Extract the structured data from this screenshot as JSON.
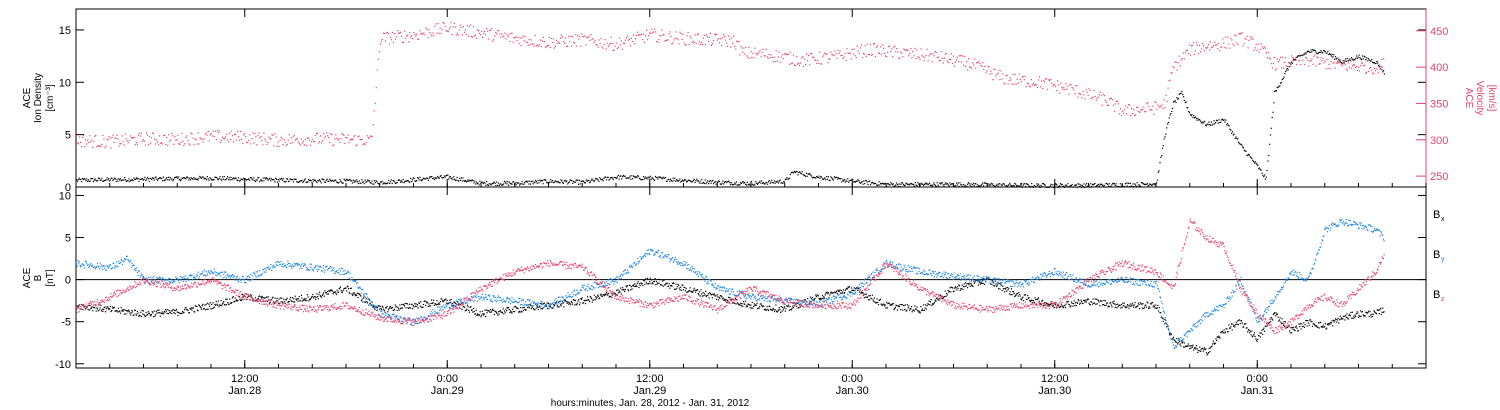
{
  "colors": {
    "black": "#000000",
    "pink": "#e8436f",
    "blue": "#1f86e0"
  },
  "chart_data": [
    {
      "type": "scatter",
      "title": "",
      "ylabel_lines": [
        "ACE",
        "Ion Density",
        "[cm⁻³]"
      ],
      "ylabel_right_lines": [
        "ACE",
        "Velocity",
        "[km/s]"
      ],
      "ylim": [
        0,
        17
      ],
      "yticks": [
        0,
        5,
        10,
        15
      ],
      "ylim_right": [
        235,
        480
      ],
      "yticks_right": [
        250,
        300,
        350,
        400,
        450
      ],
      "xlim_hours": [
        0,
        80
      ],
      "series": [
        {
          "name": "",
          "axis": "left",
          "color": "#000000",
          "values": [
            [
              0,
              0.7
            ],
            [
              4,
              0.8
            ],
            [
              8,
              0.9
            ],
            [
              12,
              0.7
            ],
            [
              16,
              0.6
            ],
            [
              18,
              0.5
            ],
            [
              19,
              0.6
            ],
            [
              21,
              0.9
            ],
            [
              22,
              1.0
            ],
            [
              24,
              0.4
            ],
            [
              26,
              0.4
            ],
            [
              28,
              0.6
            ],
            [
              30,
              0.5
            ],
            [
              32,
              1.0
            ],
            [
              34,
              0.9
            ],
            [
              36,
              0.7
            ],
            [
              38,
              0.5
            ],
            [
              40,
              0.4
            ],
            [
              42,
              0.6
            ],
            [
              42.5,
              1.5
            ],
            [
              44,
              1.0
            ],
            [
              46,
              0.6
            ],
            [
              48,
              0.3
            ],
            [
              52,
              0.3
            ],
            [
              56,
              0.2
            ],
            [
              60,
              0.2
            ],
            [
              63,
              0.3
            ],
            [
              64,
              0.4
            ],
            [
              64.5,
              5
            ],
            [
              65,
              8
            ],
            [
              65.5,
              9
            ],
            [
              66,
              7
            ],
            [
              67,
              6
            ],
            [
              68,
              6.5
            ],
            [
              69,
              4
            ],
            [
              70,
              2
            ],
            [
              70.5,
              0.8
            ],
            [
              71,
              9
            ],
            [
              72,
              12
            ],
            [
              73,
              13
            ],
            [
              74,
              13
            ],
            [
              75,
              12
            ],
            [
              76,
              12.5
            ],
            [
              77,
              12
            ],
            [
              77.5,
              11
            ]
          ]
        },
        {
          "name": "",
          "axis": "right",
          "color": "#e8436f",
          "values": [
            [
              0,
              300
            ],
            [
              2,
              298
            ],
            [
              4,
              302
            ],
            [
              6,
              301
            ],
            [
              8,
              305
            ],
            [
              10,
              304
            ],
            [
              12,
              300
            ],
            [
              14,
              302
            ],
            [
              16,
              301
            ],
            [
              17.5,
              300
            ],
            [
              18,
              440
            ],
            [
              20,
              445
            ],
            [
              22,
              455
            ],
            [
              24,
              448
            ],
            [
              26,
              440
            ],
            [
              28,
              435
            ],
            [
              30,
              438
            ],
            [
              32,
              432
            ],
            [
              34,
              445
            ],
            [
              36,
              440
            ],
            [
              38,
              438
            ],
            [
              39,
              436
            ],
            [
              39.5,
              420
            ],
            [
              41,
              418
            ],
            [
              43,
              410
            ],
            [
              45,
              415
            ],
            [
              47,
              425
            ],
            [
              49,
              420
            ],
            [
              51,
              415
            ],
            [
              53,
              405
            ],
            [
              55,
              385
            ],
            [
              57,
              380
            ],
            [
              59,
              370
            ],
            [
              61,
              355
            ],
            [
              62,
              340
            ],
            [
              64,
              345
            ],
            [
              64.5,
              350
            ],
            [
              65,
              400
            ],
            [
              66,
              425
            ],
            [
              67,
              430
            ],
            [
              68,
              433
            ],
            [
              69,
              440
            ],
            [
              70,
              430
            ],
            [
              71,
              405
            ],
            [
              73,
              410
            ],
            [
              75,
              403
            ],
            [
              77,
              400
            ],
            [
              77.5,
              405
            ]
          ]
        }
      ]
    },
    {
      "type": "scatter",
      "title": "",
      "ylabel_lines": [
        "ACE",
        "B",
        "[nT]"
      ],
      "ylim": [
        -10.5,
        11
      ],
      "yticks": [
        -10,
        -5,
        0,
        5,
        10
      ],
      "xlim_hours": [
        0,
        80
      ],
      "legend_placement": "right",
      "legend": [
        {
          "label": "B",
          "sub": "x",
          "color": "#000000"
        },
        {
          "label": "B",
          "sub": "y",
          "color": "#1f86e0"
        },
        {
          "label": "B",
          "sub": "z",
          "color": "#e8436f"
        }
      ],
      "series": [
        {
          "name": "Bₓ",
          "color": "#000000",
          "values": [
            [
              0,
              -3
            ],
            [
              2,
              -3.5
            ],
            [
              4,
              -4
            ],
            [
              6,
              -3.8
            ],
            [
              8,
              -3
            ],
            [
              10,
              -2
            ],
            [
              12,
              -2.5
            ],
            [
              14,
              -2
            ],
            [
              16,
              -1
            ],
            [
              18,
              -3.5
            ],
            [
              20,
              -3
            ],
            [
              22,
              -2.5
            ],
            [
              24,
              -4
            ],
            [
              26,
              -3.5
            ],
            [
              28,
              -3
            ],
            [
              30,
              -2.5
            ],
            [
              32,
              -1.5
            ],
            [
              34,
              0
            ],
            [
              36,
              -1
            ],
            [
              38,
              -2
            ],
            [
              40,
              -3
            ],
            [
              42,
              -3.5
            ],
            [
              44,
              -2
            ],
            [
              46,
              -1
            ],
            [
              48,
              -3
            ],
            [
              50,
              -3.5
            ],
            [
              52,
              -1
            ],
            [
              54,
              0
            ],
            [
              56,
              -2
            ],
            [
              58,
              -3
            ],
            [
              60,
              -2.5
            ],
            [
              62,
              -3
            ],
            [
              64,
              -3
            ],
            [
              65,
              -7
            ],
            [
              66,
              -8
            ],
            [
              67,
              -8.5
            ],
            [
              68,
              -6
            ],
            [
              69,
              -5
            ],
            [
              70,
              -7
            ],
            [
              71,
              -4
            ],
            [
              72,
              -6
            ],
            [
              73,
              -5
            ],
            [
              74,
              -5.5
            ],
            [
              75,
              -4.5
            ],
            [
              76,
              -4
            ],
            [
              77,
              -4
            ],
            [
              77.5,
              -3.5
            ]
          ]
        },
        {
          "name": "Bᵧ",
          "color": "#1f86e0",
          "values": [
            [
              0,
              2
            ],
            [
              2,
              1.5
            ],
            [
              3,
              2.5
            ],
            [
              4,
              0
            ],
            [
              6,
              0
            ],
            [
              8,
              1
            ],
            [
              10,
              0
            ],
            [
              12,
              2
            ],
            [
              14,
              1.5
            ],
            [
              16,
              1
            ],
            [
              18,
              -4
            ],
            [
              20,
              -5
            ],
            [
              22,
              -3
            ],
            [
              24,
              -2
            ],
            [
              26,
              -2.5
            ],
            [
              28,
              -3
            ],
            [
              30,
              -1
            ],
            [
              32,
              0
            ],
            [
              34,
              3.5
            ],
            [
              36,
              2
            ],
            [
              38,
              -1
            ],
            [
              40,
              -2
            ],
            [
              42,
              -2.5
            ],
            [
              44,
              -2.8
            ],
            [
              46,
              -1.5
            ],
            [
              48,
              2
            ],
            [
              50,
              1
            ],
            [
              52,
              0.5
            ],
            [
              54,
              0
            ],
            [
              56,
              -0.5
            ],
            [
              58,
              1
            ],
            [
              60,
              -0.5
            ],
            [
              62,
              0
            ],
            [
              64,
              -0.5
            ],
            [
              65,
              -8
            ],
            [
              66,
              -6
            ],
            [
              67,
              -4
            ],
            [
              68,
              -3
            ],
            [
              69,
              0
            ],
            [
              70,
              -5
            ],
            [
              71,
              -2
            ],
            [
              72,
              1
            ],
            [
              73,
              0
            ],
            [
              74,
              6
            ],
            [
              75,
              7
            ],
            [
              76,
              6.5
            ],
            [
              77,
              6
            ],
            [
              77.5,
              5
            ]
          ]
        },
        {
          "name": "Bᶻ",
          "color": "#e8436f",
          "values": [
            [
              0,
              -3.5
            ],
            [
              2,
              -2
            ],
            [
              4,
              0
            ],
            [
              6,
              -1
            ],
            [
              8,
              0
            ],
            [
              10,
              -2
            ],
            [
              12,
              -3
            ],
            [
              14,
              -3.5
            ],
            [
              16,
              -3
            ],
            [
              18,
              -4.5
            ],
            [
              20,
              -5
            ],
            [
              22,
              -4
            ],
            [
              24,
              -1
            ],
            [
              26,
              1
            ],
            [
              28,
              2
            ],
            [
              30,
              1.5
            ],
            [
              32,
              -2
            ],
            [
              34,
              -3
            ],
            [
              36,
              -2
            ],
            [
              38,
              -3.5
            ],
            [
              40,
              -1
            ],
            [
              42,
              -2.5
            ],
            [
              44,
              -3
            ],
            [
              46,
              -3
            ],
            [
              48,
              2
            ],
            [
              50,
              -1
            ],
            [
              52,
              -3
            ],
            [
              54,
              -3.5
            ],
            [
              56,
              -3
            ],
            [
              58,
              -3
            ],
            [
              60,
              0
            ],
            [
              62,
              2
            ],
            [
              64,
              1
            ],
            [
              65,
              -1
            ],
            [
              66,
              7
            ],
            [
              67,
              5
            ],
            [
              68,
              4
            ],
            [
              69,
              -1
            ],
            [
              70,
              -4
            ],
            [
              71,
              -6
            ],
            [
              72,
              -5
            ],
            [
              73,
              -3
            ],
            [
              74,
              -2
            ],
            [
              75,
              -3
            ],
            [
              76,
              -1
            ],
            [
              77,
              1
            ],
            [
              77.5,
              3
            ]
          ]
        }
      ]
    }
  ],
  "x_axis": {
    "ticks": [
      {
        "time": "12:00",
        "date": "Jan.28"
      },
      {
        "time": "0:00",
        "date": "Jan.29"
      },
      {
        "time": "12:00",
        "date": "Jan.29"
      },
      {
        "time": "0:00",
        "date": "Jan.30"
      },
      {
        "time": "12:00",
        "date": "Jan.30"
      },
      {
        "time": "0:00",
        "date": "Jan.31"
      }
    ],
    "tick_hours": [
      10,
      22,
      34,
      46,
      58,
      70
    ],
    "label": "hours:minutes, Jan. 28, 2012 - Jan. 31, 2012"
  }
}
